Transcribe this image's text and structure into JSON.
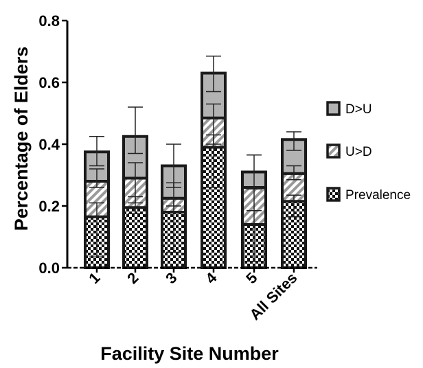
{
  "chart_data": {
    "type": "bar",
    "stacked": true,
    "title": "",
    "xlabel": "Facility Site Number",
    "ylabel": "Percentage of Elders",
    "ylim": [
      0,
      0.8
    ],
    "yticks": [
      "0.0",
      "0.2",
      "0.4",
      "0.6",
      "0.8"
    ],
    "categories": [
      "1",
      "2",
      "3",
      "4",
      "5",
      "All Sites"
    ],
    "series": [
      {
        "name": "Prevalence",
        "pattern": "checkerboard",
        "values": [
          0.165,
          0.195,
          0.18,
          0.39,
          0.14,
          0.215
        ],
        "error_upper": [
          0.21,
          0.23,
          0.225,
          0.43,
          0.185,
          0.235
        ],
        "error_lower": [
          0.035,
          0.175,
          0.05,
          0.26,
          0.02,
          0.165
        ]
      },
      {
        "name": "U>D",
        "pattern": "diagonal-stripes",
        "values": [
          0.115,
          0.095,
          0.045,
          0.095,
          0.12,
          0.09
        ],
        "error_upper": [
          0.32,
          0.34,
          0.275,
          0.53,
          0.255,
          0.33
        ],
        "error_lower": [
          0.26,
          0.21,
          0.2,
          0.4,
          0.185,
          0.285
        ]
      },
      {
        "name": "D>U",
        "pattern": "solid-gray",
        "values": [
          0.095,
          0.135,
          0.105,
          0.145,
          0.05,
          0.11
        ],
        "error_upper": [
          0.425,
          0.52,
          0.4,
          0.685,
          0.365,
          0.44
        ],
        "error_lower": [
          0.33,
          0.37,
          0.26,
          0.57,
          0.26,
          0.38
        ]
      }
    ],
    "legend": {
      "position": "right",
      "order": [
        "D>U",
        "U>D",
        "Prevalence"
      ]
    },
    "colors": {
      "solid_gray": "#b3b3b3",
      "stripe_dark": "#9a9a9a",
      "checker_dark": "#111111",
      "border": "#1a1a1a"
    }
  }
}
